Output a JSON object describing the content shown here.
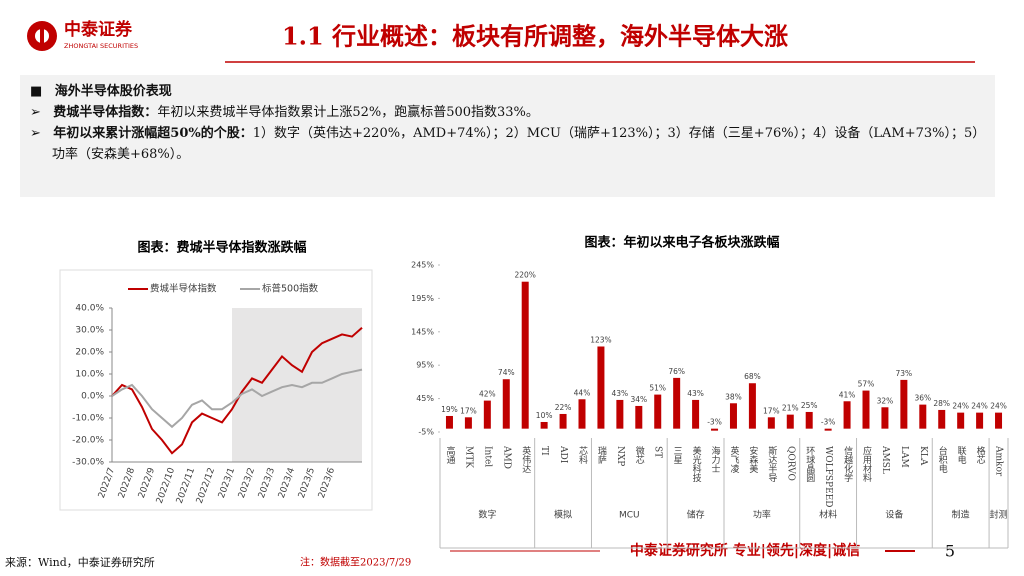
{
  "header": {
    "logo_name": "中泰证券",
    "logo_subname": "ZHONGTAI SECURITIES",
    "title": "1.1 行业概述：板块有所调整，海外半导体大涨"
  },
  "summary": {
    "heading": "海外半导体股价表现",
    "bullets": [
      {
        "label": "费城半导体指数：",
        "text": "年初以来费城半导体指数累计上涨52%，跑赢标普500指数33%。"
      },
      {
        "label": "年初以来累计涨幅超50%的个股：",
        "text": "1）数字（英伟达+220%，AMD+74%）；2）MCU（瑞萨+123%）；3）存储（三星+76%）；4）设备（LAM+73%）；5）功率（安森美+68%）。"
      }
    ]
  },
  "chart_data": [
    {
      "type": "line",
      "title": "图表：费城半导体指数涨跌幅",
      "categories": [
        "2022/7",
        null,
        "2022/8",
        null,
        "2022/9",
        null,
        "2022/10",
        null,
        "2022/11",
        null,
        "2022/12",
        null,
        "2023/1",
        null,
        "2023/2",
        null,
        "2023/3",
        null,
        "2023/4",
        null,
        "2023/5",
        null,
        "2023/6",
        null,
        null,
        null
      ],
      "series": [
        {
          "name": "费城半导体指数",
          "color": "#c00000",
          "values": [
            0,
            5,
            3,
            -5,
            -15,
            -20,
            -26,
            -22,
            -12,
            -8,
            -10,
            -12,
            -6,
            2,
            8,
            6,
            12,
            18,
            14,
            11,
            20,
            24,
            26,
            28,
            27,
            31
          ]
        },
        {
          "name": "标普500指数",
          "color": "#a6a6a6",
          "values": [
            0,
            3,
            5,
            0,
            -6,
            -10,
            -14,
            -10,
            -4,
            -2,
            -6,
            -6,
            -3,
            1,
            3,
            0,
            2,
            4,
            5,
            4,
            6,
            6,
            8,
            10,
            11,
            12
          ]
        }
      ],
      "ylim": [
        -30,
        40
      ],
      "yticks": [
        {
          "value": -30,
          "label": "-30.0%"
        },
        {
          "value": -20,
          "label": "-20.0%"
        },
        {
          "value": -10,
          "label": "-10.0%"
        },
        {
          "value": 0,
          "label": "0.0%"
        },
        {
          "value": 10,
          "label": "10.0%"
        },
        {
          "value": 20,
          "label": "20.0%"
        },
        {
          "value": 30,
          "label": "30.0%"
        },
        {
          "value": 40,
          "label": "40.0%"
        }
      ],
      "legend": "top"
    },
    {
      "type": "bar",
      "title": "图表：年初以来电子各板块涨跌幅",
      "color": "#c00000",
      "categories": [
        "高通",
        "MTK",
        "Intel",
        "AMD",
        "英伟达",
        "TI",
        "ADI",
        "芯科",
        "瑞萨",
        "NXP",
        "微芯",
        "ST",
        "三星",
        "美光科技",
        "海力士",
        "英飞凌",
        "安森美",
        "斯达半导",
        "QORVO",
        "环球晶圆",
        "WOLFSPEED",
        "信越化学",
        "应用材料",
        "AMSL",
        "LAM",
        "KLA",
        "台积电",
        "联电",
        "格芯",
        "Amkor"
      ],
      "values": [
        19,
        17,
        42,
        74,
        220,
        10,
        22,
        44,
        123,
        43,
        34,
        51,
        76,
        43,
        -3,
        38,
        68,
        17,
        21,
        25,
        -3,
        41,
        57,
        32,
        73,
        36,
        28,
        24,
        24,
        24
      ],
      "value_labels": [
        "19%",
        "17%",
        "42%",
        "74%",
        "220%",
        "10%",
        "22%",
        "44%",
        "123%",
        "43%",
        "34%",
        "51%",
        "76%",
        "43%",
        "-3%",
        "38%",
        "68%",
        "17%",
        "21%",
        "25%",
        "-3%",
        "41%",
        "57%",
        "32%",
        "73%",
        "36%",
        "28%",
        "24%",
        "24%",
        "24%"
      ],
      "groups": [
        {
          "label": "数字",
          "size": 5
        },
        {
          "label": "模拟",
          "size": 3
        },
        {
          "label": "MCU",
          "size": 4
        },
        {
          "label": "储存",
          "size": 3
        },
        {
          "label": "功率",
          "size": 4
        },
        {
          "label": "材料",
          "size": 3
        },
        {
          "label": "设备",
          "size": 4
        },
        {
          "label": "制造",
          "size": 3
        },
        {
          "label": "封测",
          "size": 1
        }
      ],
      "ylim": [
        -5,
        245
      ],
      "yticks": [
        {
          "value": -5,
          "label": "-5%"
        },
        {
          "value": 45,
          "label": "45%"
        },
        {
          "value": 95,
          "label": "95%"
        },
        {
          "value": 145,
          "label": "145%"
        },
        {
          "value": 195,
          "label": "195%"
        },
        {
          "value": 245,
          "label": "245%"
        }
      ]
    }
  ],
  "footer": {
    "source": "来源：Wind，中泰证券研究所",
    "note": "注：数据截至2023/7/29",
    "brand": "中泰证券研究所 专业|领先|深度|诚信",
    "page": "5"
  }
}
